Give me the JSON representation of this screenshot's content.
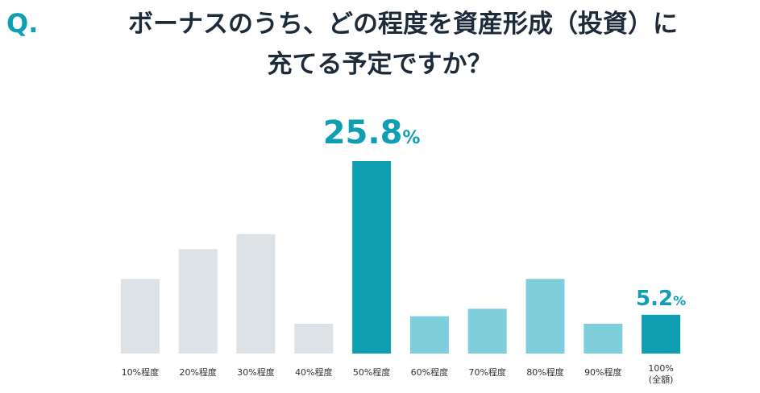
{
  "chart_data": {
    "type": "bar",
    "title_prefix": "Q.",
    "title_lines": [
      "ボーナスのうち、どの程度を資産形成（投資）に",
      "充てる予定ですか？"
    ],
    "categories": [
      "10%程度",
      "20%程度",
      "30%程度",
      "40%程度",
      "50%程度",
      "60%程度",
      "70%程度",
      "80%程度",
      "90%程度",
      "100%\n(全額)"
    ],
    "values": [
      10,
      14,
      16,
      4,
      25.8,
      5,
      6,
      10,
      4,
      5.2
    ],
    "value_labels": [
      null,
      null,
      null,
      null,
      "25.8%",
      null,
      null,
      null,
      null,
      "5.2%"
    ],
    "colors": [
      "#dce2e6",
      "#dce2e6",
      "#dce2e6",
      "#dce2e6",
      "#0e9fb3",
      "#7ecfdb",
      "#7ecfdb",
      "#7ecfdb",
      "#7ecfdb",
      "#0e9fb3"
    ],
    "label_color": "#0e9fb3",
    "ylim": [
      0,
      28
    ]
  }
}
